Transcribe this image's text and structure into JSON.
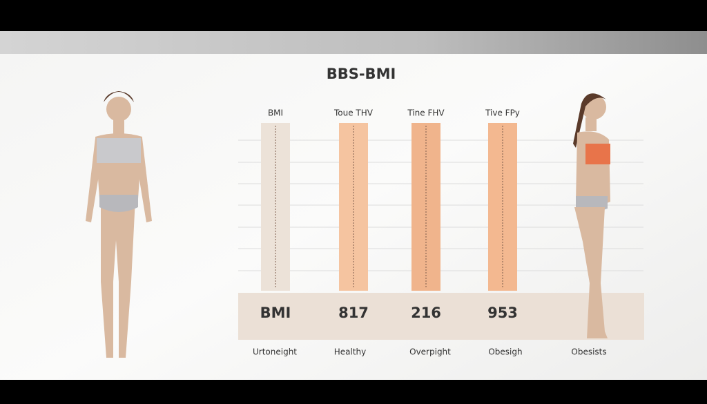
{
  "title": "BBS-BMI",
  "columns": [
    {
      "header": "BMI",
      "value": "BMI",
      "color": "#ece2d8"
    },
    {
      "header": "Toue THV",
      "value": "817",
      "color": "#f5c4a0"
    },
    {
      "header": "Tine FHV",
      "value": "216",
      "color": "#f0b48c"
    },
    {
      "header": "Tive FPy",
      "value": "953",
      "color": "#f3b890"
    }
  ],
  "categories": [
    "Urtoneight",
    "Healthy",
    "Overpight",
    "Obesigh",
    "Obesists"
  ]
}
